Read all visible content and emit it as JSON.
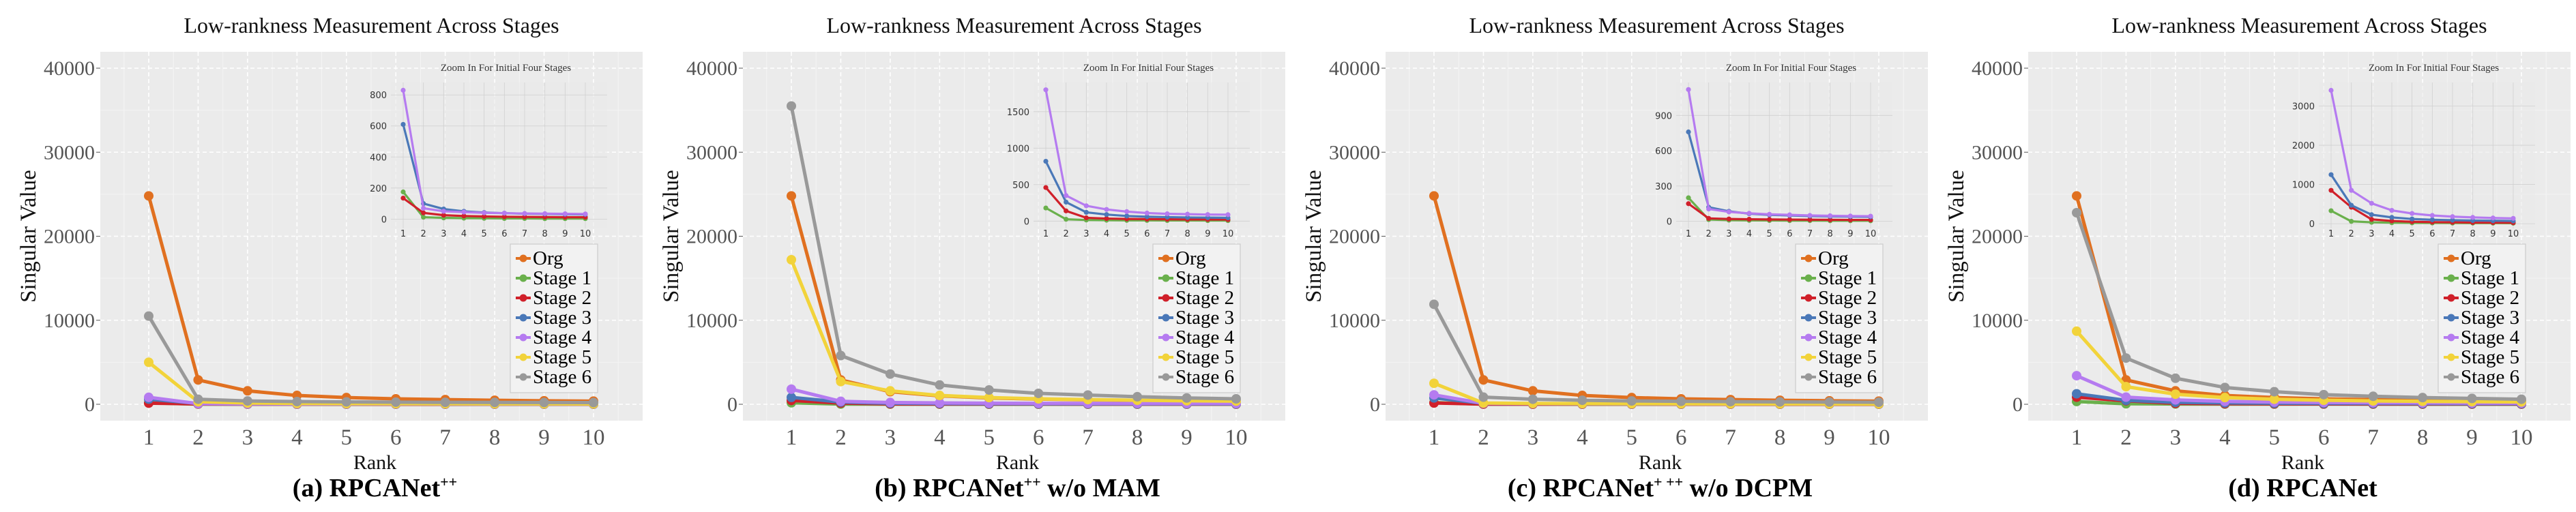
{
  "figure": {
    "panel_labels": [
      "(a) RPCANet",
      "(b) RPCANet",
      "(c) RPCANet",
      "(d) RPCANet"
    ]
  },
  "chart_data": [
    {
      "type": "line",
      "title": "Low-rankness Measurement Across Stages",
      "caption": "(a) RPCANet",
      "caption_sup": "++",
      "caption_suffix": "",
      "xlabel": "Rank",
      "ylabel": "Singular Value",
      "x": [
        1,
        2,
        3,
        4,
        5,
        6,
        7,
        8,
        9,
        10
      ],
      "xticks": [
        "1",
        "2",
        "3",
        "4",
        "5",
        "6",
        "7",
        "8",
        "9",
        "10"
      ],
      "ylim": [
        -2000,
        42000
      ],
      "yticks": [
        0,
        10000,
        20000,
        30000,
        40000
      ],
      "ytick_labels": [
        "0",
        "10000",
        "20000",
        "30000",
        "40000"
      ],
      "grid": true,
      "legend_position": "right-middle",
      "series": [
        {
          "name": "Org",
          "color": "#E07020",
          "values": [
            24800,
            2900,
            1600,
            1050,
            800,
            650,
            560,
            480,
            420,
            380
          ]
        },
        {
          "name": "Stage 1",
          "color": "#6AB04C",
          "values": [
            175,
            12,
            8,
            6,
            5,
            4,
            4,
            3,
            3,
            3
          ]
        },
        {
          "name": "Stage 2",
          "color": "#D0202A",
          "values": [
            135,
            40,
            25,
            20,
            17,
            15,
            14,
            13,
            12,
            12
          ]
        },
        {
          "name": "Stage 3",
          "color": "#4A78B8",
          "values": [
            610,
            100,
            65,
            50,
            42,
            38,
            35,
            33,
            31,
            30
          ]
        },
        {
          "name": "Stage 4",
          "color": "#B57BF0",
          "values": [
            830,
            70,
            50,
            45,
            40,
            38,
            36,
            35,
            34,
            33
          ]
        },
        {
          "name": "Stage 5",
          "color": "#F2D33A",
          "values": [
            5000,
            300,
            150,
            100,
            80,
            70,
            60,
            55,
            50,
            45
          ]
        },
        {
          "name": "Stage 6",
          "color": "#999999",
          "values": [
            10500,
            600,
            400,
            320,
            280,
            250,
            230,
            220,
            210,
            200
          ]
        }
      ],
      "inset": {
        "title": "Zoom In For Initial Four Stages",
        "ylim": [
          -60,
          880
        ],
        "yticks": [
          0,
          200,
          400,
          600,
          800
        ],
        "ytick_labels": [
          "0",
          "200",
          "400",
          "600",
          "800"
        ],
        "series_names": [
          "Stage 1",
          "Stage 2",
          "Stage 3",
          "Stage 4"
        ]
      }
    },
    {
      "type": "line",
      "title": "Low-rankness Measurement Across Stages",
      "caption": "(b) RPCANet",
      "caption_sup": "++",
      "caption_suffix": " w/o MAM",
      "xlabel": "Rank",
      "ylabel": "Singular Value",
      "x": [
        1,
        2,
        3,
        4,
        5,
        6,
        7,
        8,
        9,
        10
      ],
      "xticks": [
        "1",
        "2",
        "3",
        "4",
        "5",
        "6",
        "7",
        "8",
        "9",
        "10"
      ],
      "ylim": [
        -2000,
        42000
      ],
      "yticks": [
        0,
        10000,
        20000,
        30000,
        40000
      ],
      "ytick_labels": [
        "0",
        "10000",
        "20000",
        "30000",
        "40000"
      ],
      "grid": true,
      "legend_position": "right-middle",
      "series": [
        {
          "name": "Org",
          "color": "#E07020",
          "values": [
            24800,
            2900,
            1500,
            1000,
            750,
            620,
            530,
            460,
            410,
            370
          ]
        },
        {
          "name": "Stage 1",
          "color": "#6AB04C",
          "values": [
            180,
            25,
            15,
            12,
            10,
            9,
            8,
            8,
            7,
            7
          ]
        },
        {
          "name": "Stage 2",
          "color": "#D0202A",
          "values": [
            460,
            140,
            45,
            35,
            30,
            27,
            25,
            23,
            22,
            21
          ]
        },
        {
          "name": "Stage 3",
          "color": "#4A78B8",
          "values": [
            820,
            260,
            120,
            90,
            70,
            60,
            55,
            50,
            48,
            45
          ]
        },
        {
          "name": "Stage 4",
          "color": "#B57BF0",
          "values": [
            1800,
            350,
            210,
            160,
            130,
            110,
            100,
            95,
            90,
            88
          ]
        },
        {
          "name": "Stage 5",
          "color": "#F2D33A",
          "values": [
            17200,
            2700,
            1600,
            1050,
            800,
            650,
            560,
            480,
            420,
            380
          ]
        },
        {
          "name": "Stage 6",
          "color": "#999999",
          "values": [
            35500,
            5800,
            3600,
            2300,
            1700,
            1300,
            1100,
            900,
            750,
            650
          ]
        }
      ],
      "inset": {
        "title": "Zoom In For Initial Four Stages",
        "ylim": [
          -100,
          1900
        ],
        "yticks": [
          0,
          500,
          1000,
          1500
        ],
        "ytick_labels": [
          "0",
          "500",
          "1000",
          "1500"
        ],
        "series_names": [
          "Stage 1",
          "Stage 2",
          "Stage 3",
          "Stage 4"
        ]
      }
    },
    {
      "type": "line",
      "title": "Low-rankness Measurement Across Stages",
      "caption": "(c) RPCANet",
      "caption_sup": "+ ++",
      "caption_suffix": " w/o DCPM",
      "xlabel": "Rank",
      "ylabel": "Singular Value",
      "x": [
        1,
        2,
        3,
        4,
        5,
        6,
        7,
        8,
        9,
        10
      ],
      "xticks": [
        "1",
        "2",
        "3",
        "4",
        "5",
        "6",
        "7",
        "8",
        "9",
        "10"
      ],
      "ylim": [
        -2000,
        42000
      ],
      "yticks": [
        0,
        10000,
        20000,
        30000,
        40000
      ],
      "ytick_labels": [
        "0",
        "10000",
        "20000",
        "30000",
        "40000"
      ],
      "grid": true,
      "legend_position": "right-middle",
      "series": [
        {
          "name": "Org",
          "color": "#E07020",
          "values": [
            24800,
            2900,
            1600,
            1050,
            800,
            650,
            560,
            480,
            420,
            380
          ]
        },
        {
          "name": "Stage 1",
          "color": "#6AB04C",
          "values": [
            200,
            15,
            10,
            8,
            7,
            6,
            6,
            5,
            5,
            5
          ]
        },
        {
          "name": "Stage 2",
          "color": "#D0202A",
          "values": [
            150,
            25,
            20,
            18,
            16,
            15,
            14,
            13,
            12,
            12
          ]
        },
        {
          "name": "Stage 3",
          "color": "#4A78B8",
          "values": [
            760,
            120,
            85,
            65,
            55,
            50,
            45,
            42,
            40,
            38
          ]
        },
        {
          "name": "Stage 4",
          "color": "#B57BF0",
          "values": [
            1120,
            105,
            80,
            68,
            60,
            55,
            50,
            47,
            45,
            44
          ]
        },
        {
          "name": "Stage 5",
          "color": "#F2D33A",
          "values": [
            2500,
            150,
            100,
            80,
            70,
            60,
            55,
            50,
            48,
            45
          ]
        },
        {
          "name": "Stage 6",
          "color": "#999999",
          "values": [
            11900,
            850,
            600,
            480,
            400,
            350,
            310,
            280,
            260,
            240
          ]
        }
      ],
      "inset": {
        "title": "Zoom In For Initial Four Stages",
        "ylim": [
          -60,
          1180
        ],
        "yticks": [
          0,
          300,
          600,
          900
        ],
        "ytick_labels": [
          "0",
          "300",
          "600",
          "900"
        ],
        "series_names": [
          "Stage 1",
          "Stage 2",
          "Stage 3",
          "Stage 4"
        ]
      }
    },
    {
      "type": "line",
      "title": "Low-rankness Measurement Across Stages",
      "caption": "(d) RPCANet",
      "caption_sup": "",
      "caption_suffix": "",
      "xlabel": "Rank",
      "ylabel": "Singular Value",
      "x": [
        1,
        2,
        3,
        4,
        5,
        6,
        7,
        8,
        9,
        10
      ],
      "xticks": [
        "1",
        "2",
        "3",
        "4",
        "5",
        "6",
        "7",
        "8",
        "9",
        "10"
      ],
      "ylim": [
        -2000,
        42000
      ],
      "yticks": [
        0,
        10000,
        20000,
        30000,
        40000
      ],
      "ytick_labels": [
        "0",
        "10000",
        "20000",
        "30000",
        "40000"
      ],
      "grid": true,
      "legend_position": "right-middle",
      "series": [
        {
          "name": "Org",
          "color": "#E07020",
          "values": [
            24800,
            2900,
            1600,
            1050,
            800,
            650,
            560,
            480,
            420,
            380
          ]
        },
        {
          "name": "Stage 1",
          "color": "#6AB04C",
          "values": [
            330,
            60,
            35,
            25,
            20,
            18,
            16,
            15,
            14,
            13
          ]
        },
        {
          "name": "Stage 2",
          "color": "#D0202A",
          "values": [
            850,
            420,
            110,
            70,
            50,
            40,
            35,
            30,
            28,
            25
          ]
        },
        {
          "name": "Stage 3",
          "color": "#4A78B8",
          "values": [
            1250,
            470,
            230,
            160,
            120,
            100,
            90,
            80,
            75,
            70
          ]
        },
        {
          "name": "Stage 4",
          "color": "#B57BF0",
          "values": [
            3400,
            850,
            520,
            340,
            260,
            210,
            180,
            160,
            145,
            135
          ]
        },
        {
          "name": "Stage 5",
          "color": "#F2D33A",
          "values": [
            8700,
            2100,
            1200,
            800,
            600,
            480,
            400,
            350,
            310,
            280
          ]
        },
        {
          "name": "Stage 6",
          "color": "#999999",
          "values": [
            22800,
            5500,
            3100,
            2000,
            1500,
            1150,
            950,
            800,
            700,
            600
          ]
        }
      ],
      "inset": {
        "title": "Zoom In For Initial Four Stages",
        "ylim": [
          -120,
          3600
        ],
        "yticks": [
          0,
          1000,
          2000,
          3000
        ],
        "ytick_labels": [
          "0",
          "1000",
          "2000",
          "3000"
        ],
        "series_names": [
          "Stage 1",
          "Stage 2",
          "Stage 3",
          "Stage 4"
        ]
      }
    }
  ]
}
